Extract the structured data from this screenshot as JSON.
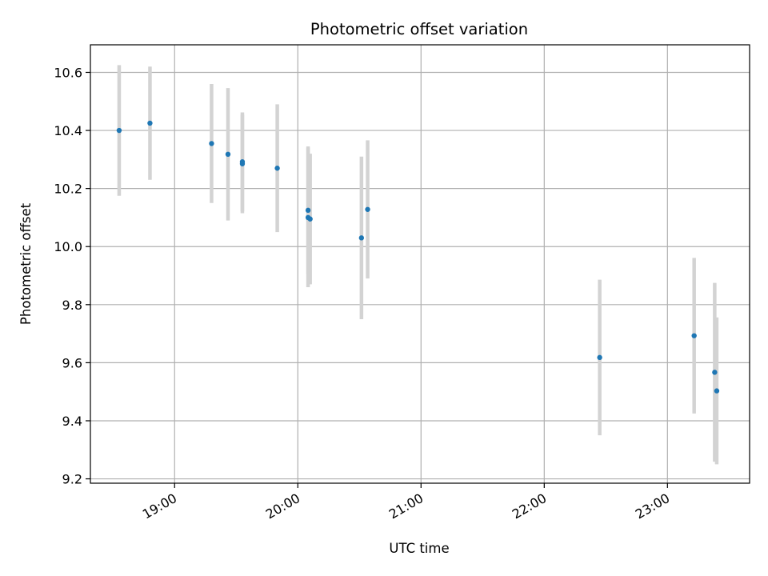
{
  "chart_data": {
    "type": "scatter",
    "title": "Photometric offset variation",
    "xlabel": "UTC time",
    "ylabel": "Photometric offset",
    "x_ticks": [
      "19:00",
      "20:00",
      "21:00",
      "22:00",
      "23:00"
    ],
    "y_ticks": [
      "9.2",
      "9.4",
      "9.6",
      "9.8",
      "10.0",
      "10.2",
      "10.4",
      "10.6"
    ],
    "xlim": [
      "18:19",
      "23:40"
    ],
    "ylim": [
      9.185,
      10.695
    ],
    "grid": true,
    "error_bar_color": "#d3d3d3",
    "point_color": "#1f77b4",
    "points": [
      {
        "x": "18:33",
        "y": 10.4,
        "yerr": 0.225
      },
      {
        "x": "18:48",
        "y": 10.425,
        "yerr": 0.195
      },
      {
        "x": "19:18",
        "y": 10.355,
        "yerr": 0.205
      },
      {
        "x": "19:26",
        "y": 10.318,
        "yerr": 0.228
      },
      {
        "x": "19:33",
        "y": 10.292,
        "yerr": 0.17
      },
      {
        "x": "19:33",
        "y": 10.285,
        "yerr": 0.17
      },
      {
        "x": "19:50",
        "y": 10.27,
        "yerr": 0.22
      },
      {
        "x": "20:05",
        "y": 10.125,
        "yerr": 0.22
      },
      {
        "x": "20:05",
        "y": 10.1,
        "yerr": 0.24
      },
      {
        "x": "20:06",
        "y": 10.095,
        "yerr": 0.225
      },
      {
        "x": "20:31",
        "y": 10.03,
        "yerr": 0.28
      },
      {
        "x": "20:34",
        "y": 10.128,
        "yerr": 0.238
      },
      {
        "x": "22:27",
        "y": 9.618,
        "yerr": 0.268
      },
      {
        "x": "23:13",
        "y": 9.693,
        "yerr": 0.268
      },
      {
        "x": "23:23",
        "y": 9.567,
        "yerr": 0.308
      },
      {
        "x": "23:24",
        "y": 9.503,
        "yerr": 0.253
      }
    ]
  }
}
